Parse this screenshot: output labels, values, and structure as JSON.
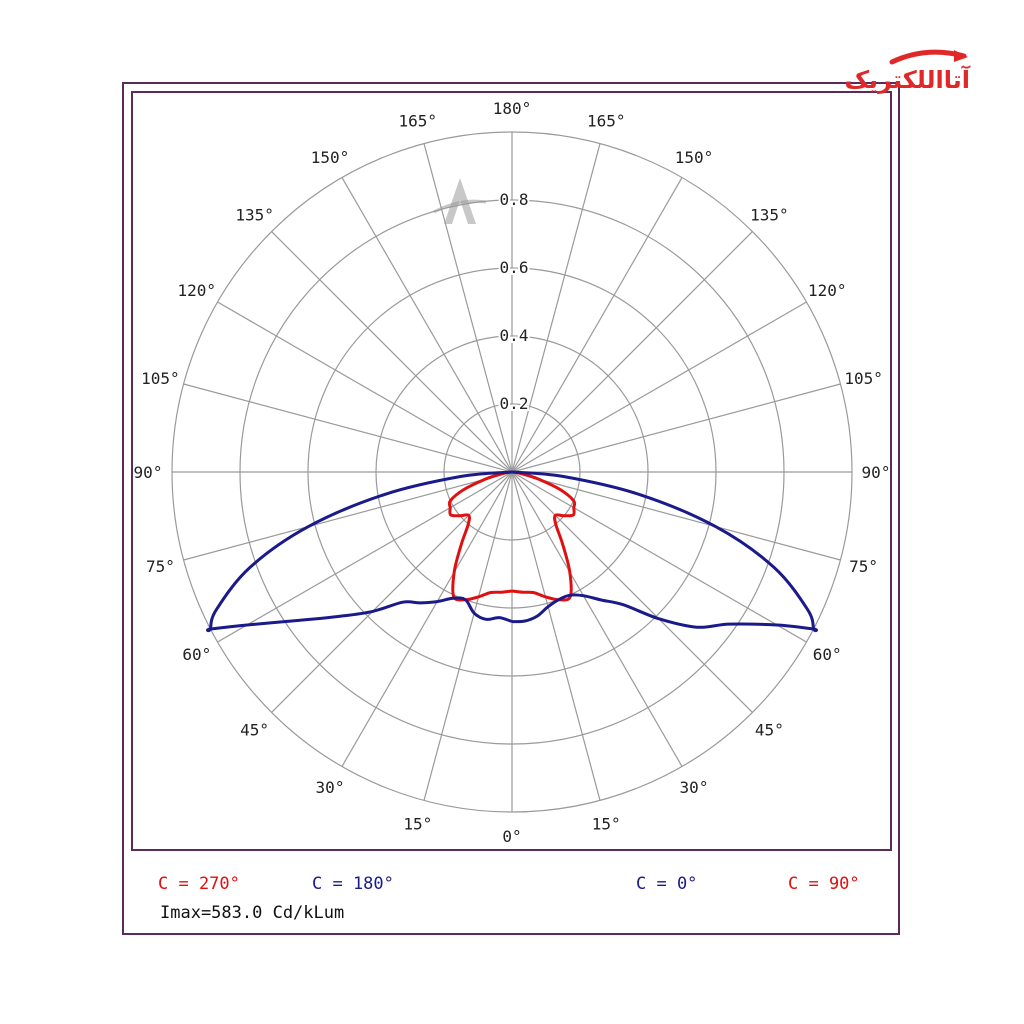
{
  "brand": {
    "logo_text": "آتااللکتریک"
  },
  "chart_data": {
    "type": "polar",
    "rings": [
      0.2,
      0.4,
      0.6,
      0.8
    ],
    "r_max": 1.0,
    "angle_labels_left": [
      "180°",
      "165°",
      "150°",
      "135°",
      "120°",
      "105°",
      "90°",
      "75°",
      "60°",
      "45°",
      "30°",
      "15°",
      "0°"
    ],
    "angle_labels_right": [
      "165°",
      "150°",
      "135°",
      "120°",
      "105°",
      "90°",
      "75°",
      "60°",
      "45°",
      "30°",
      "15°"
    ],
    "series": [
      {
        "name": "C = 270°",
        "color": "#e01010",
        "side": "left",
        "gamma": [
          0,
          5,
          10,
          15,
          20,
          25,
          30,
          35,
          40,
          45,
          50,
          55,
          60,
          65,
          70,
          75,
          80,
          85,
          90
        ],
        "r": [
          0.35,
          0.355,
          0.36,
          0.38,
          0.4,
          0.405,
          0.34,
          0.26,
          0.2,
          0.18,
          0.2,
          0.22,
          0.21,
          0.2,
          0.15,
          0.08,
          0.03,
          0.01,
          0.0
        ]
      },
      {
        "name": "C = 90°",
        "color": "#e01010",
        "side": "right",
        "gamma": [
          0,
          5,
          10,
          15,
          20,
          25,
          30,
          35,
          40,
          45,
          50,
          55,
          60,
          65,
          70,
          75,
          80,
          85,
          90
        ],
        "r": [
          0.35,
          0.355,
          0.36,
          0.38,
          0.4,
          0.405,
          0.34,
          0.26,
          0.2,
          0.18,
          0.2,
          0.22,
          0.21,
          0.2,
          0.15,
          0.08,
          0.03,
          0.01,
          0.0
        ]
      },
      {
        "name": "C = 180°",
        "color": "#1a1a8a",
        "side": "left",
        "closed": true,
        "upper_gamma": [
          90,
          85,
          80,
          75,
          70,
          65,
          62.5
        ],
        "upper_r": [
          0.0,
          0.15,
          0.38,
          0.62,
          0.82,
          0.96,
          1.0
        ],
        "lower_gamma": [
          62.5,
          60,
          55,
          50,
          45,
          40,
          35,
          30,
          25,
          20,
          15,
          10,
          5,
          0
        ],
        "lower_r": [
          1.0,
          0.9,
          0.76,
          0.66,
          0.58,
          0.5,
          0.47,
          0.44,
          0.41,
          0.4,
          0.43,
          0.44,
          0.43,
          0.44
        ]
      },
      {
        "name": "C = 0°",
        "color": "#1a1a8a",
        "side": "right",
        "closed": true,
        "upper_gamma": [
          90,
          85,
          80,
          75,
          70,
          65,
          62.5
        ],
        "upper_r": [
          0.0,
          0.15,
          0.38,
          0.62,
          0.82,
          0.96,
          1.0
        ],
        "lower_gamma": [
          62.5,
          60,
          55,
          50,
          45,
          40,
          35,
          30,
          25,
          20,
          15,
          10,
          5,
          0
        ],
        "lower_r": [
          1.0,
          0.9,
          0.78,
          0.71,
          0.61,
          0.51,
          0.46,
          0.42,
          0.4,
          0.4,
          0.41,
          0.43,
          0.44,
          0.44
        ]
      }
    ],
    "legend": {
      "items": [
        {
          "text": "C = 270°",
          "color": "#e01010"
        },
        {
          "text": "C = 180°",
          "color": "#1a1a8a"
        },
        {
          "text": "C = 0°",
          "color": "#1a1a8a"
        },
        {
          "text": "C = 90°",
          "color": "#e01010"
        }
      ]
    },
    "imax": "Imax=583.0 Cd/kLum"
  }
}
